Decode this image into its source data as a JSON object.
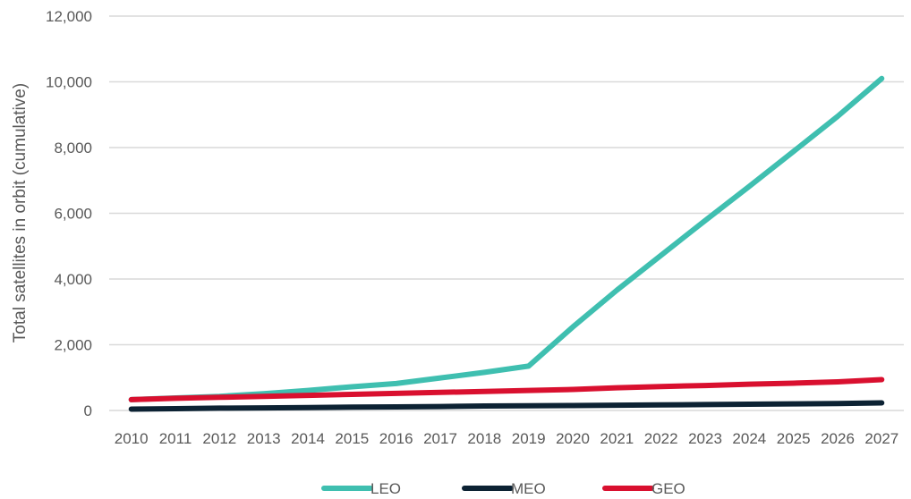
{
  "chart_data": {
    "type": "line",
    "title": "",
    "xlabel": "",
    "ylabel": "Total satellites in orbit (cumulative)",
    "x": [
      "2010",
      "2011",
      "2012",
      "2013",
      "2014",
      "2015",
      "2016",
      "2017",
      "2018",
      "2019",
      "2020",
      "2021",
      "2022",
      "2023",
      "2024",
      "2025",
      "2026",
      "2027"
    ],
    "yticks": [
      "0",
      "2,000",
      "4,000",
      "6,000",
      "8,000",
      "10,000",
      "12,000"
    ],
    "ylim": [
      0,
      12000
    ],
    "grid": true,
    "legend": "bottom",
    "series": [
      {
        "name": "LEO",
        "color": "#3FBFB0",
        "values": [
          330,
          380,
          430,
          510,
          610,
          720,
          820,
          990,
          1160,
          1350,
          2540,
          3660,
          4720,
          5780,
          6820,
          7880,
          8950,
          10100
        ]
      },
      {
        "name": "MEO",
        "color": "#0C2233",
        "values": [
          40,
          55,
          70,
          80,
          90,
          100,
          110,
          120,
          135,
          145,
          150,
          160,
          170,
          180,
          190,
          200,
          210,
          230
        ]
      },
      {
        "name": "GEO",
        "color": "#D9102F",
        "values": [
          330,
          370,
          400,
          430,
          460,
          490,
          520,
          550,
          580,
          610,
          640,
          690,
          730,
          760,
          800,
          830,
          870,
          940
        ]
      }
    ]
  }
}
